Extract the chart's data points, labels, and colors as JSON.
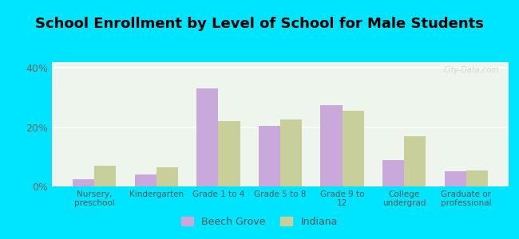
{
  "title": "School Enrollment by Level of School for Male Students",
  "categories": [
    "Nursery,\npreschool",
    "Kindergarten",
    "Grade 1 to 4",
    "Grade 5 to 8",
    "Grade 9 to\n12",
    "College\nundergrad",
    "Graduate or\nprofessional"
  ],
  "beech_grove": [
    2.5,
    4.0,
    33.0,
    20.5,
    27.5,
    9.0,
    5.0
  ],
  "indiana": [
    7.0,
    6.5,
    22.0,
    22.5,
    25.5,
    17.0,
    5.5
  ],
  "beech_grove_color": "#c9a8dc",
  "indiana_color": "#c8cf9a",
  "background_outer": "#00e5ff",
  "background_inner": "#eef5ec",
  "ylim": [
    0,
    42
  ],
  "yticks": [
    0,
    20,
    40
  ],
  "ytick_labels": [
    "0%",
    "20%",
    "40%"
  ],
  "title_fontsize": 13,
  "legend_labels": [
    "Beech Grove",
    "Indiana"
  ],
  "bar_width": 0.35,
  "watermark": "City-Data.com"
}
